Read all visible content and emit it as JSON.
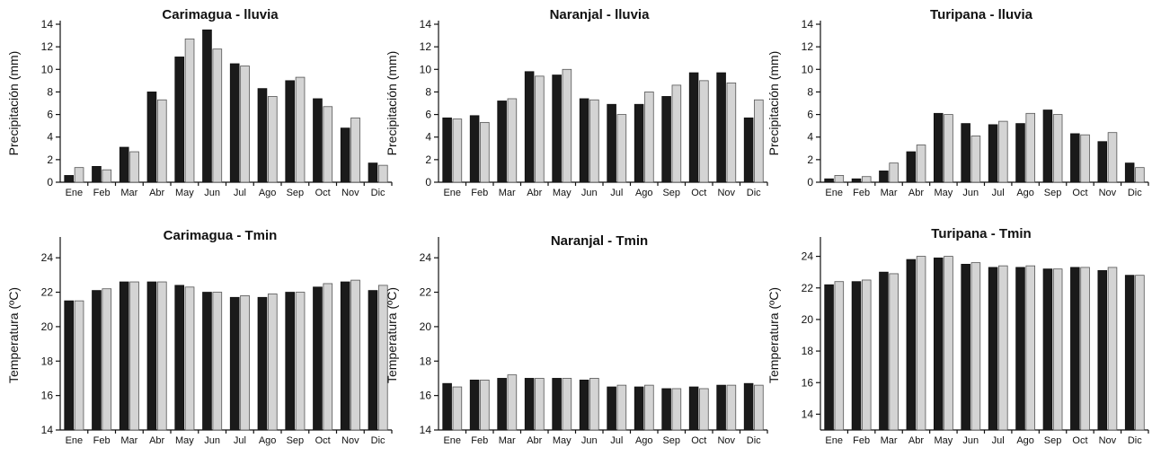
{
  "chart_data": [
    {
      "type": "bar",
      "title": "Carimagua - lluvia",
      "ylabel": "Precipitación (mm)",
      "ylim": [
        0,
        14
      ],
      "yticks": [
        0,
        2,
        4,
        6,
        8,
        10,
        12,
        14
      ],
      "categories": [
        "Ene",
        "Feb",
        "Mar",
        "Abr",
        "May",
        "Jun",
        "Jul",
        "Ago",
        "Sep",
        "Oct",
        "Nov",
        "Dic"
      ],
      "series": [
        {
          "color": "#1a1a1a",
          "values": [
            0.6,
            1.4,
            3.1,
            8.0,
            11.1,
            13.5,
            10.5,
            8.3,
            9.0,
            7.4,
            4.8,
            1.7
          ]
        },
        {
          "color": "#d4d4d4",
          "values": [
            1.3,
            1.1,
            2.7,
            7.3,
            12.7,
            11.8,
            10.3,
            7.6,
            9.3,
            6.7,
            5.7,
            1.5
          ]
        }
      ]
    },
    {
      "type": "bar",
      "title": "Naranjal - lluvia",
      "ylabel": "Precipitación (mm)",
      "ylim": [
        0,
        14
      ],
      "yticks": [
        0,
        2,
        4,
        6,
        8,
        10,
        12,
        14
      ],
      "categories": [
        "Ene",
        "Feb",
        "Mar",
        "Abr",
        "May",
        "Jun",
        "Jul",
        "Ago",
        "Sep",
        "Oct",
        "Nov",
        "Dic"
      ],
      "series": [
        {
          "color": "#1a1a1a",
          "values": [
            5.7,
            5.9,
            7.2,
            9.8,
            9.5,
            7.4,
            6.9,
            6.9,
            7.6,
            9.7,
            9.7,
            5.7
          ]
        },
        {
          "color": "#d4d4d4",
          "values": [
            5.6,
            5.3,
            7.4,
            9.4,
            10.0,
            7.3,
            6.0,
            8.0,
            8.6,
            9.0,
            8.8,
            7.3
          ]
        }
      ]
    },
    {
      "type": "bar",
      "title": "Turipana - lluvia",
      "ylabel": "Precipitación (mm)",
      "ylim": [
        0,
        14
      ],
      "yticks": [
        0,
        2,
        4,
        6,
        8,
        10,
        12,
        14
      ],
      "categories": [
        "Ene",
        "Feb",
        "Mar",
        "Abr",
        "May",
        "Jun",
        "Jul",
        "Ago",
        "Sep",
        "Oct",
        "Nov",
        "Dic"
      ],
      "series": [
        {
          "color": "#1a1a1a",
          "values": [
            0.3,
            0.3,
            1.0,
            2.7,
            6.1,
            5.2,
            5.1,
            5.2,
            6.4,
            4.3,
            3.6,
            1.7
          ]
        },
        {
          "color": "#d4d4d4",
          "values": [
            0.6,
            0.5,
            1.7,
            3.3,
            6.0,
            4.1,
            5.4,
            6.1,
            6.0,
            4.2,
            4.4,
            1.3
          ]
        }
      ]
    },
    {
      "type": "bar",
      "title": "Carimagua - Tmin",
      "ylabel": "Temperatura (ºC)",
      "ylim": [
        14,
        25
      ],
      "yticks": [
        14,
        16,
        18,
        20,
        22,
        24
      ],
      "categories": [
        "Ene",
        "Feb",
        "Mar",
        "Abr",
        "May",
        "Jun",
        "Jul",
        "Ago",
        "Sep",
        "Oct",
        "Nov",
        "Dic"
      ],
      "series": [
        {
          "color": "#1a1a1a",
          "values": [
            21.5,
            22.1,
            22.6,
            22.6,
            22.4,
            22.0,
            21.7,
            21.7,
            22.0,
            22.3,
            22.6,
            22.1
          ]
        },
        {
          "color": "#d4d4d4",
          "values": [
            21.5,
            22.2,
            22.6,
            22.6,
            22.3,
            22.0,
            21.8,
            21.9,
            22.0,
            22.5,
            22.7,
            22.4
          ]
        }
      ]
    },
    {
      "type": "bar",
      "title": "Naranjal - Tmin",
      "ylabel": "Temperatura (ºC)",
      "ylim": [
        14,
        25
      ],
      "yticks": [
        14,
        16,
        18,
        20,
        22,
        24
      ],
      "categories": [
        "Ene",
        "Feb",
        "Mar",
        "Abr",
        "May",
        "Jun",
        "Jul",
        "Ago",
        "Sep",
        "Oct",
        "Nov",
        "Dic"
      ],
      "series": [
        {
          "color": "#1a1a1a",
          "values": [
            16.7,
            16.9,
            17.0,
            17.0,
            17.0,
            16.9,
            16.5,
            16.5,
            16.4,
            16.5,
            16.6,
            16.7
          ]
        },
        {
          "color": "#d4d4d4",
          "values": [
            16.5,
            16.9,
            17.2,
            17.0,
            17.0,
            17.0,
            16.6,
            16.6,
            16.4,
            16.4,
            16.6,
            16.6
          ]
        }
      ]
    },
    {
      "type": "bar",
      "title": "Turipana - Tmin",
      "ylabel": "Temperatura (ºC)",
      "ylim": [
        13,
        25
      ],
      "yticks": [
        14,
        16,
        18,
        20,
        22,
        24
      ],
      "categories": [
        "Ene",
        "Feb",
        "Mar",
        "Abr",
        "May",
        "Jun",
        "Jul",
        "Ago",
        "Sep",
        "Oct",
        "Nov",
        "Dic"
      ],
      "series": [
        {
          "color": "#1a1a1a",
          "values": [
            22.2,
            22.4,
            23.0,
            23.8,
            23.9,
            23.5,
            23.3,
            23.3,
            23.2,
            23.3,
            23.1,
            22.8
          ]
        },
        {
          "color": "#d4d4d4",
          "values": [
            22.4,
            22.5,
            22.9,
            24.0,
            24.0,
            23.6,
            23.4,
            23.4,
            23.2,
            23.3,
            23.3,
            22.8
          ]
        }
      ]
    }
  ]
}
